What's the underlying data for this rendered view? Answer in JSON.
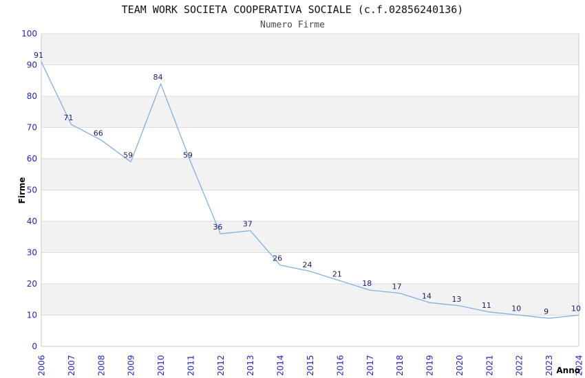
{
  "chart_data": {
    "type": "line",
    "title": "TEAM WORK SOCIETA COOPERATIVA SOCIALE (c.f.02856240136)",
    "subtitle": "Numero Firme",
    "xlabel": "Anno",
    "ylabel": "Firme",
    "x": [
      "2006",
      "2007",
      "2008",
      "2009",
      "2010",
      "2011",
      "2012",
      "2013",
      "2014",
      "2015",
      "2016",
      "2017",
      "2018",
      "2019",
      "2020",
      "2021",
      "2022",
      "2023",
      "2024"
    ],
    "series": [
      {
        "name": "Numero Firme",
        "values": [
          91,
          71,
          66,
          59,
          84,
          59,
          36,
          37,
          26,
          24,
          21,
          18,
          17,
          14,
          13,
          11,
          10,
          9,
          10
        ]
      }
    ],
    "point_labels_visible": true,
    "ylim": [
      0,
      100
    ],
    "yticks": [
      0,
      10,
      20,
      30,
      40,
      50,
      60,
      70,
      80,
      90,
      100
    ],
    "grid": "horizontal",
    "band_style": "alternating-horizontal",
    "legend": "none",
    "colors": {
      "line": "#7FB0E6",
      "axis_tick_label": "#2323CC",
      "point_label": "#1A1A70",
      "title_text": "#111111",
      "subtitle_text": "#4A4A4A",
      "axis_title_text": "#000000",
      "band_shaded": "#F2F2F2",
      "band_plain": "#FFFFFF",
      "gridline": "#DCDCDC",
      "plot_border": "#C8C8C8",
      "background": "#FFFFFF"
    }
  }
}
